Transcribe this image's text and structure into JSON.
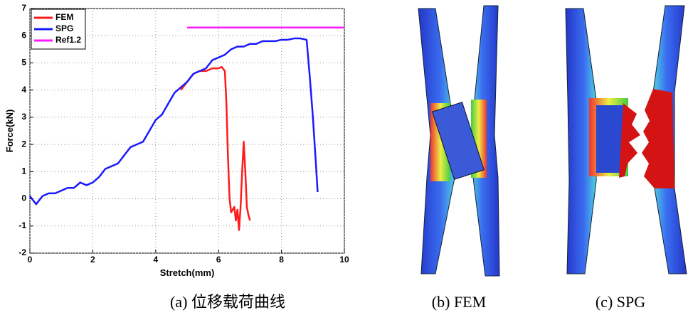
{
  "chart_data": {
    "type": "line",
    "caption": "(a) 位移载荷曲线",
    "xlabel": "Stretch(mm)",
    "ylabel": "Force(kN)",
    "xlim": [
      0,
      10
    ],
    "ylim": [
      -2,
      7
    ],
    "xticks": [
      0,
      2,
      4,
      6,
      8,
      10
    ],
    "yticks": [
      -2,
      -1,
      0,
      1,
      2,
      3,
      4,
      5,
      6,
      7
    ],
    "grid": true,
    "legend": "upper-left",
    "series": [
      {
        "name": "FEM",
        "color": "#ff1a1a",
        "x": [
          4.8,
          5.0,
          5.2,
          5.4,
          5.6,
          5.8,
          6.0,
          6.1,
          6.2,
          6.25,
          6.3,
          6.35,
          6.4,
          6.5,
          6.55,
          6.6,
          6.65,
          6.7,
          6.75,
          6.8,
          6.85,
          6.9,
          6.95,
          7.0
        ],
        "values": [
          4.0,
          4.3,
          4.6,
          4.7,
          4.7,
          4.8,
          4.8,
          4.85,
          4.7,
          3.5,
          1.5,
          0,
          -0.5,
          -0.3,
          -0.8,
          -0.4,
          -1.15,
          -0.3,
          1.0,
          2.1,
          1.0,
          -0.3,
          -0.6,
          -0.8
        ]
      },
      {
        "name": "SPG",
        "color": "#1a1aff",
        "x": [
          0,
          0.2,
          0.4,
          0.6,
          0.8,
          1.0,
          1.2,
          1.4,
          1.6,
          1.8,
          2.0,
          2.2,
          2.4,
          2.6,
          2.8,
          3.0,
          3.2,
          3.4,
          3.6,
          3.8,
          4.0,
          4.2,
          4.4,
          4.6,
          4.8,
          5.0,
          5.2,
          5.4,
          5.6,
          5.8,
          6.0,
          6.2,
          6.4,
          6.6,
          6.8,
          7.0,
          7.2,
          7.4,
          7.6,
          7.8,
          8.0,
          8.2,
          8.4,
          8.6,
          8.8,
          8.9,
          9.0,
          9.1,
          9.15
        ],
        "values": [
          0.1,
          -0.2,
          0.1,
          0.2,
          0.2,
          0.3,
          0.4,
          0.4,
          0.6,
          0.5,
          0.6,
          0.8,
          1.1,
          1.2,
          1.3,
          1.6,
          1.9,
          2.0,
          2.1,
          2.5,
          2.9,
          3.1,
          3.5,
          3.9,
          4.1,
          4.3,
          4.6,
          4.7,
          4.8,
          5.1,
          5.2,
          5.3,
          5.5,
          5.6,
          5.6,
          5.7,
          5.7,
          5.8,
          5.8,
          5.8,
          5.85,
          5.85,
          5.9,
          5.9,
          5.85,
          4.5,
          3,
          1.2,
          0.25
        ]
      },
      {
        "name": "Ref1.2",
        "color": "#ff1aff",
        "x": [
          5,
          10
        ],
        "values": [
          6.3,
          6.3
        ]
      }
    ]
  },
  "panels": [
    {
      "caption": "(b) FEM"
    },
    {
      "caption": "(c) SPG"
    }
  ]
}
